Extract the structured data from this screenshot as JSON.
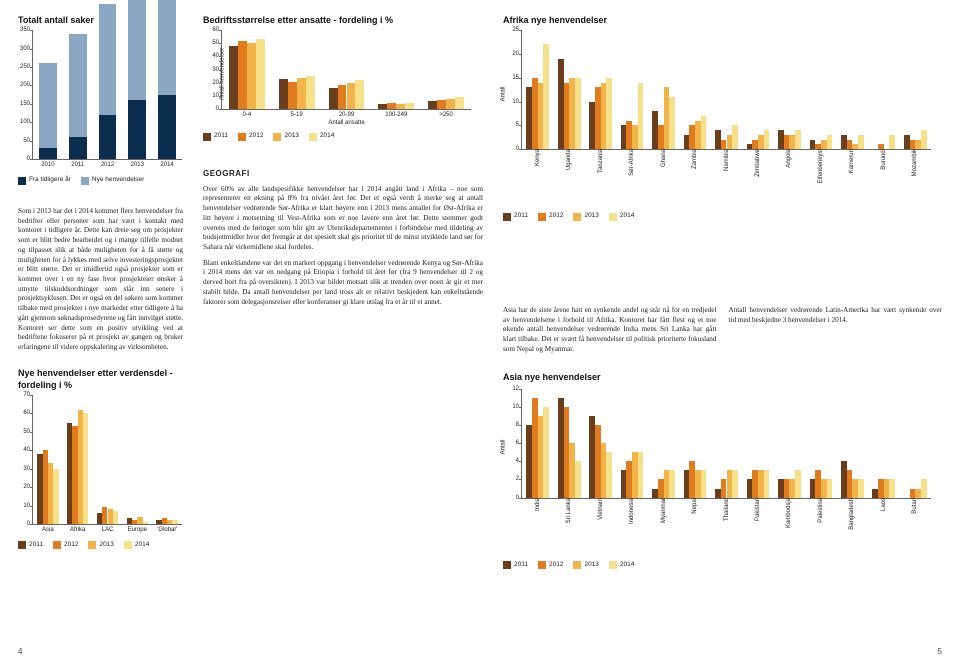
{
  "palette": {
    "y2011": "#6a3d1b",
    "y2012": "#e07b1e",
    "y2013": "#f2b449",
    "y2014": "#f7e08a",
    "fra_tidligere": "#0b2e4f",
    "nye": "#8aa7c4",
    "grid": "#666666",
    "bg": "#ffffff"
  },
  "totalt": {
    "title": "Totalt antall saker",
    "ymax": 350,
    "ystep": 50,
    "categories": [
      "2010",
      "2011",
      "2012",
      "2013",
      "2014"
    ],
    "series": [
      {
        "key": "fra_tidligere",
        "label": "Fra tidligere år",
        "values": [
          30,
          60,
          120,
          160,
          175
        ]
      },
      {
        "key": "nye",
        "label": "Nye henvendelser",
        "values": [
          230,
          280,
          300,
          310,
          300
        ]
      }
    ],
    "bar_width": 0.6
  },
  "left_para": "Som i 2013 har det i 2014 kommet flere henvendelser fra bedrifter eller personer som har vært i kontakt med kontoret i tidligere år. Dette kan dreie seg om prosjekter som er blitt bedre bearbeidet og i mange tilfelle modnet og tilpasset slik at både muligheten for å få støtte og muligheten for å lykkes med selve investeringsprosjektet er blitt større. Det er imidlertid også prosjekter som er kommet over i en ny fase hvor prosjekteier ønsker å utnytte tilskuddsordninger som slår inn senere i prosjektsyklusen. Det er også en del søkere som kommer tilbake med prosjekter i nye markeder etter tidligere å ha gått gjennom søknadsprosedyrene og fått innvilget støtte. Kontoret ser dette som en positiv utvikling ved at bedriftene fokuserer på et prosjekt av gangen og bruker erfaringene til videre oppskalering av virksomheten.",
  "verdensdel": {
    "title": "Nye henvendelser etter verdensdel - fordeling i %",
    "ymax": 70,
    "ystep": 10,
    "categories": [
      "Asia",
      "Afrika",
      "LAC",
      "Europe",
      "'Global'"
    ],
    "series_years": [
      "2011",
      "2012",
      "2013",
      "2014"
    ],
    "values": [
      [
        38,
        55,
        6,
        3,
        2
      ],
      [
        40,
        53,
        9,
        2,
        3
      ],
      [
        33,
        62,
        8,
        4,
        2
      ],
      [
        30,
        60,
        7,
        1,
        2
      ]
    ],
    "bar_width": 0.18
  },
  "bedrift": {
    "title": "Bedriftsstørrelse etter ansatte - fordeling i %",
    "ylabel": "Antall henvendelser",
    "xlabel": "Antall ansatte",
    "ymax": 60,
    "ystep": 10,
    "categories": [
      "0-4",
      "5-19",
      "20-99",
      "100-249",
      ">250"
    ],
    "series_years": [
      "2011",
      "2012",
      "2013",
      "2014"
    ],
    "values": [
      [
        48,
        23,
        16,
        4,
        6
      ],
      [
        52,
        21,
        18,
        5,
        7
      ],
      [
        50,
        24,
        20,
        4,
        8
      ],
      [
        53,
        25,
        22,
        5,
        9
      ]
    ],
    "bar_width": 0.18
  },
  "mid_head": "GEOGRAFI",
  "mid_para1": "Over 60% av alle landspesifikke henvendelser har i 2014 angått land i Afrika – noe som representerer en økning på 8% fra nivået året før. Det er også verdt å merke seg at antall henvendelser vedrørende Sør-Afrika er klart høyere enn i 2013 mens antallet for Øst-Afrika er litt høyere i motsetning til Vest-Afrika som er noe lavere enn året før. Dette stemmer godt overens med de føringer som blir gitt av Utenriksdepartementet i forbindelse med tildeling av budsjettmidler hvor det fremgår at det spesielt skal gis prioritet til de minst utviklede land sør for Sahara når virkemidlene skal fordeles.",
  "mid_para2": "Blant enkeltlandene var det en markert oppgang i henvendelser vedrørende Kenya og Sør-Afrika i 2014 mens det var en nedgang på Etiopia i forhold til året før (fra 9 henvendelser til 2 og derved bort fra på oversikten). I 2013 var bildet motsatt slik at trenden over noen år gir et mer stabilt bilde. Da antall henvendelser per land tross alt er relativt beskjedent kan enkeltstående faktorer som delegasjonsreiser eller konferanser gi klare utslag fra et år til et annet.",
  "afrika": {
    "title": "Afrika nye henvendelser",
    "ylabel": "Antall",
    "ymax": 25,
    "ystep": 5,
    "categories": [
      "Kenya",
      "Uganda",
      "Tanzania",
      "Sør-Afrika",
      "Ghana",
      "Zambia",
      "Namibia",
      "Zimbabwe",
      "Angola",
      "Elfenbenkyst",
      "Kamerun",
      "Burundi",
      "Mozambik"
    ],
    "series_years": [
      "2011",
      "2012",
      "2013",
      "2014"
    ],
    "values": [
      [
        13,
        19,
        10,
        5,
        8,
        3,
        4,
        1,
        4,
        2,
        3,
        0,
        3
      ],
      [
        15,
        14,
        13,
        6,
        5,
        5,
        2,
        2,
        3,
        1,
        2,
        1,
        2
      ],
      [
        14,
        15,
        14,
        5,
        13,
        6,
        3,
        3,
        3,
        2,
        1,
        0,
        2
      ],
      [
        22,
        15,
        15,
        14,
        11,
        7,
        5,
        4,
        4,
        3,
        3,
        3,
        4
      ]
    ],
    "bar_width": 0.18
  },
  "right_para1": "Asia har de siste årene hatt en synkende andel og står nå for en tredjedel av henvendelsene i forhold til Afrika. Kontoret har fått flest og et noe økende antall henvendelser vedrørende India mens Sri Lanka har gått klart tilbake. Det er svært få henvendelser til politisk prioriterte fokusland som Nepal og Myanmar.",
  "right_para2": "Antall henvendelser vedrørende Latin-Amerika har vært synkende over tid med beskjedne 3 henvendelser i 2014.",
  "asia": {
    "title": "Asia nye henvendelser",
    "ylabel": "Antall",
    "ymax": 12,
    "ystep": 2,
    "categories": [
      "India",
      "Sri Lanka",
      "Vietnam",
      "Indonesia",
      "Myanmar",
      "Nepal",
      "Thailand",
      "Pakistan",
      "Kambodsja",
      "Palestina",
      "Bangladesh",
      "Laos",
      "Butan"
    ],
    "series_years": [
      "2011",
      "2012",
      "2013",
      "2014"
    ],
    "values": [
      [
        8,
        11,
        9,
        3,
        1,
        3,
        1,
        2,
        2,
        2,
        4,
        1,
        0
      ],
      [
        11,
        10,
        8,
        4,
        2,
        4,
        2,
        3,
        2,
        3,
        3,
        2,
        1
      ],
      [
        9,
        6,
        6,
        5,
        3,
        3,
        3,
        3,
        2,
        2,
        2,
        2,
        1
      ],
      [
        10,
        4,
        5,
        5,
        3,
        3,
        3,
        3,
        3,
        2,
        2,
        2,
        2
      ]
    ],
    "bar_width": 0.18
  },
  "pagenum_left": "4",
  "pagenum_right": "5",
  "legend_years": [
    "2011",
    "2012",
    "2013",
    "2014"
  ]
}
